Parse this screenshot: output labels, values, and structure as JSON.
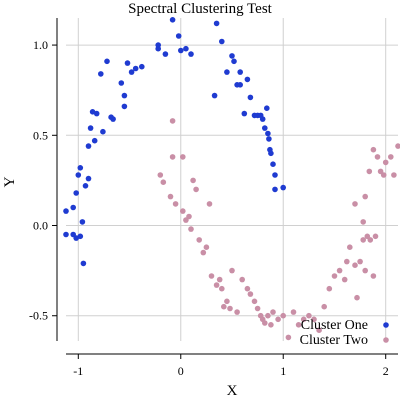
{
  "chart_data": {
    "type": "scatter",
    "title": "Spectral Clustering Test",
    "xlabel": "X",
    "ylabel": "Y",
    "xlim": [
      -1.12,
      2.12
    ],
    "ylim": [
      -0.64,
      1.15
    ],
    "xticks": [
      -1,
      0,
      1,
      2
    ],
    "yticks": [
      -0.5,
      0.0,
      0.5,
      1.0
    ],
    "xtick_labels": [
      "-1",
      "0",
      "1",
      "2"
    ],
    "ytick_labels": [
      "-0.5",
      "0.0",
      "0.5",
      "1.0"
    ],
    "grid": true,
    "legend_position": "bottom-right",
    "series": [
      {
        "name": "Cluster One",
        "color": "#1f3bd1",
        "points": [
          [
            -1.12,
            0.08
          ],
          [
            -1.12,
            -0.05
          ],
          [
            -1.05,
            0.1
          ],
          [
            -1.02,
            0.18
          ],
          [
            -1.0,
            0.28
          ],
          [
            -0.98,
            0.32
          ],
          [
            -1.05,
            -0.05
          ],
          [
            -1.02,
            -0.07
          ],
          [
            -0.98,
            -0.06
          ],
          [
            -0.96,
            0.02
          ],
          [
            -0.95,
            -0.21
          ],
          [
            -0.93,
            0.22
          ],
          [
            -0.9,
            0.26
          ],
          [
            -0.9,
            0.44
          ],
          [
            -0.88,
            0.54
          ],
          [
            -0.86,
            0.63
          ],
          [
            -0.84,
            0.47
          ],
          [
            -0.82,
            0.62
          ],
          [
            -0.78,
            0.84
          ],
          [
            -0.76,
            0.52
          ],
          [
            -0.72,
            0.91
          ],
          [
            -0.68,
            0.6
          ],
          [
            -0.66,
            0.59
          ],
          [
            -0.58,
            0.79
          ],
          [
            -0.55,
            0.66
          ],
          [
            -0.55,
            0.72
          ],
          [
            -0.52,
            0.9
          ],
          [
            -0.48,
            0.85
          ],
          [
            -0.44,
            0.87
          ],
          [
            -0.38,
            0.88
          ],
          [
            -0.22,
            0.98
          ],
          [
            -0.22,
            1.0
          ],
          [
            -0.15,
            0.95
          ],
          [
            -0.08,
            1.14
          ],
          [
            -0.02,
            1.05
          ],
          [
            0.0,
            0.97
          ],
          [
            0.05,
            0.98
          ],
          [
            0.1,
            0.95
          ],
          [
            0.33,
            0.72
          ],
          [
            0.35,
            1.12
          ],
          [
            0.4,
            1.02
          ],
          [
            0.45,
            0.85
          ],
          [
            0.5,
            0.94
          ],
          [
            0.52,
            0.91
          ],
          [
            0.55,
            0.78
          ],
          [
            0.58,
            0.85
          ],
          [
            0.58,
            0.78
          ],
          [
            0.62,
            0.62
          ],
          [
            0.65,
            0.81
          ],
          [
            0.68,
            0.71
          ],
          [
            0.72,
            0.61
          ],
          [
            0.75,
            0.61
          ],
          [
            0.78,
            0.61
          ],
          [
            0.8,
            0.59
          ],
          [
            0.82,
            0.54
          ],
          [
            0.84,
            0.65
          ],
          [
            0.85,
            0.51
          ],
          [
            0.86,
            0.48
          ],
          [
            0.87,
            0.42
          ],
          [
            0.88,
            0.4
          ],
          [
            0.9,
            0.34
          ],
          [
            0.92,
            0.28
          ],
          [
            0.92,
            0.2
          ],
          [
            1.0,
            0.21
          ]
        ]
      },
      {
        "name": "Cluster Two",
        "color": "#c98fa6",
        "points": [
          [
            -0.08,
            0.58
          ],
          [
            -0.08,
            0.38
          ],
          [
            0.02,
            0.38
          ],
          [
            -0.2,
            0.28
          ],
          [
            -0.17,
            0.24
          ],
          [
            -0.1,
            0.16
          ],
          [
            -0.05,
            0.12
          ],
          [
            0.02,
            0.08
          ],
          [
            0.05,
            0.03
          ],
          [
            0.08,
            0.05
          ],
          [
            0.1,
            -0.02
          ],
          [
            0.12,
            0.25
          ],
          [
            0.15,
            0.2
          ],
          [
            0.18,
            -0.08
          ],
          [
            0.22,
            -0.15
          ],
          [
            0.25,
            -0.12
          ],
          [
            0.28,
            0.12
          ],
          [
            0.3,
            -0.28
          ],
          [
            0.35,
            -0.33
          ],
          [
            0.38,
            -0.3
          ],
          [
            0.4,
            -0.35
          ],
          [
            0.42,
            -0.45
          ],
          [
            0.45,
            -0.42
          ],
          [
            0.48,
            -0.46
          ],
          [
            0.5,
            -0.25
          ],
          [
            0.55,
            -0.48
          ],
          [
            0.6,
            -0.3
          ],
          [
            0.65,
            -0.35
          ],
          [
            0.68,
            -0.38
          ],
          [
            0.72,
            -0.42
          ],
          [
            0.75,
            -0.46
          ],
          [
            0.78,
            -0.5
          ],
          [
            0.8,
            -0.52
          ],
          [
            0.82,
            -0.54
          ],
          [
            0.85,
            -0.5
          ],
          [
            0.88,
            -0.55
          ],
          [
            0.9,
            -0.48
          ],
          [
            0.95,
            -0.52
          ],
          [
            1.0,
            -0.5
          ],
          [
            1.05,
            -0.62
          ],
          [
            1.1,
            -0.48
          ],
          [
            1.15,
            -0.55
          ],
          [
            1.2,
            -0.52
          ],
          [
            1.25,
            -0.5
          ],
          [
            1.3,
            -0.52
          ],
          [
            1.35,
            -0.58
          ],
          [
            1.4,
            -0.45
          ],
          [
            1.45,
            -0.35
          ],
          [
            1.5,
            -0.28
          ],
          [
            1.55,
            -0.25
          ],
          [
            1.6,
            -0.3
          ],
          [
            1.62,
            -0.2
          ],
          [
            1.65,
            -0.12
          ],
          [
            1.7,
            -0.22
          ],
          [
            1.72,
            -0.4
          ],
          [
            1.75,
            -0.2
          ],
          [
            1.78,
            -0.08
          ],
          [
            1.8,
            -0.25
          ],
          [
            1.82,
            -0.06
          ],
          [
            1.85,
            -0.08
          ],
          [
            1.88,
            -0.28
          ],
          [
            1.9,
            -0.06
          ],
          [
            1.7,
            0.12
          ],
          [
            1.78,
            0.02
          ],
          [
            1.8,
            0.16
          ],
          [
            1.84,
            0.3
          ],
          [
            1.88,
            0.42
          ],
          [
            1.92,
            0.38
          ],
          [
            1.95,
            0.3
          ],
          [
            1.98,
            0.28
          ],
          [
            2.0,
            0.35
          ],
          [
            2.05,
            0.38
          ],
          [
            2.08,
            0.28
          ],
          [
            2.12,
            0.44
          ]
        ]
      }
    ]
  }
}
